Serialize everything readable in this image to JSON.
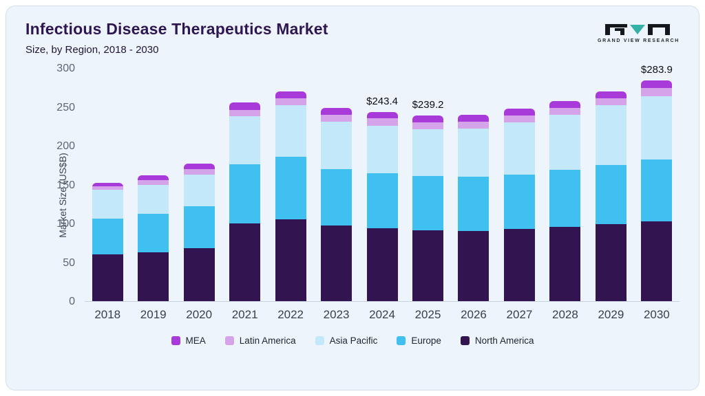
{
  "header": {
    "title": "Infectious Disease Therapeutics Market",
    "subtitle": "Size, by Region, 2018 - 2030",
    "logo_text": "GRAND VIEW RESEARCH"
  },
  "chart_data": {
    "type": "bar",
    "stacked": true,
    "title": "Infectious Disease Therapeutics Market Size, by Region, 2018 - 2030",
    "xlabel": "",
    "ylabel": "Market Size (US$B)",
    "ylim": [
      0,
      300
    ],
    "ytick_step": 50,
    "grid": false,
    "legend_position": "bottom",
    "categories": [
      "2018",
      "2019",
      "2020",
      "2021",
      "2022",
      "2023",
      "2024",
      "2025",
      "2026",
      "2027",
      "2028",
      "2029",
      "2030"
    ],
    "series": [
      {
        "name": "North America",
        "color": "#321450",
        "values": [
          60,
          63,
          68,
          100,
          105,
          97,
          94,
          91,
          90,
          93,
          96,
          99,
          103
        ]
      },
      {
        "name": "Europe",
        "color": "#3fc0f0",
        "values": [
          46,
          49,
          54,
          76,
          81,
          73,
          71,
          70,
          70,
          70,
          73,
          76,
          79
        ]
      },
      {
        "name": "Asia Pacific",
        "color": "#c3e8fa",
        "values": [
          37,
          38,
          41,
          62,
          66,
          61,
          61,
          60,
          62,
          67,
          71,
          77,
          82
        ]
      },
      {
        "name": "Latin America",
        "color": "#d5a3ea",
        "values": [
          5,
          6,
          7,
          8,
          9,
          9,
          9,
          9,
          9,
          9,
          9,
          9,
          10
        ]
      },
      {
        "name": "MEA",
        "color": "#a93ada",
        "values": [
          4,
          6,
          7,
          10,
          9,
          9,
          8.4,
          9.2,
          9,
          9,
          9,
          9,
          9.9
        ]
      }
    ],
    "totals_labeled": {
      "2024": 243.4,
      "2025": 239.2,
      "2030": 283.9
    },
    "annotations": [
      {
        "category": "2024",
        "text": "$243.4"
      },
      {
        "category": "2025",
        "text": "$239.2"
      },
      {
        "category": "2030",
        "text": "$283.9"
      }
    ]
  },
  "legend": {
    "items": [
      {
        "label": "MEA",
        "color": "#a93ada"
      },
      {
        "label": "Latin America",
        "color": "#d5a3ea"
      },
      {
        "label": "Asia Pacific",
        "color": "#c3e8fa"
      },
      {
        "label": "Europe",
        "color": "#3fc0f0"
      },
      {
        "label": "North America",
        "color": "#321450"
      }
    ]
  }
}
